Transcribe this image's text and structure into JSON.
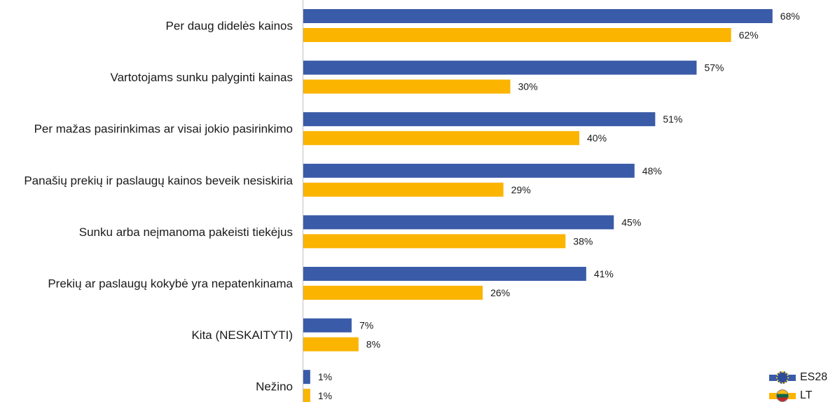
{
  "chart_data": {
    "type": "bar",
    "orientation": "horizontal",
    "categories": [
      "Per daug didelės kainos",
      "Vartotojams sunku palyginti kainas",
      "Per mažas pasirinkimas ar visai jokio pasirinkimo",
      "Panašių prekių ir paslaugų kainos beveik nesiskiria",
      "Sunku arba neįmanoma pakeisti tiekėjus",
      "Prekių ar paslaugų kokybė yra nepatenkinama",
      "Kita (NESKAITYTI)",
      "Nežino"
    ],
    "series": [
      {
        "name": "ES28",
        "color": "#3a5ba8",
        "values": [
          68,
          57,
          51,
          48,
          45,
          41,
          7,
          1
        ],
        "labels": [
          "68%",
          "57%",
          "51%",
          "48%",
          "45%",
          "41%",
          "7%",
          "1%"
        ]
      },
      {
        "name": "LT",
        "color": "#fbb400",
        "values": [
          62,
          30,
          40,
          29,
          38,
          26,
          8,
          1
        ],
        "labels": [
          "62%",
          "30%",
          "40%",
          "29%",
          "38%",
          "26%",
          "8%",
          "1%"
        ]
      }
    ],
    "xlim": [
      0,
      100
    ],
    "grid": false,
    "legend_position": "bottom-right"
  },
  "legend": {
    "items": [
      {
        "label": "ES28",
        "color": "#3a5ba8",
        "icon": "eu-flag-icon"
      },
      {
        "label": "LT",
        "color": "#fbb400",
        "icon": "lithuania-flag-icon"
      }
    ]
  }
}
